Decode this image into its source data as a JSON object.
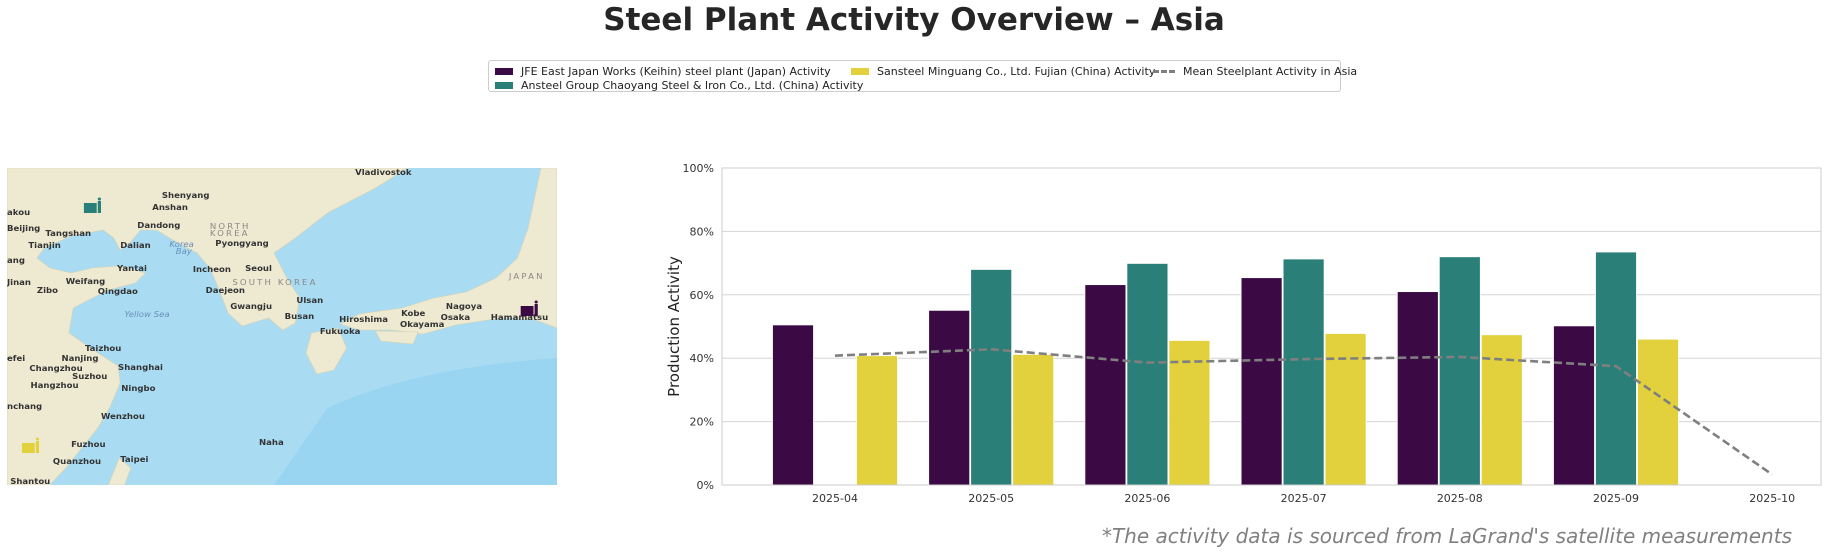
{
  "title": "Steel Plant Activity Overview – Asia",
  "footer": "*The activity data is sourced from LaGrand's satellite measurements",
  "colors": {
    "jfe": "#3b0a45",
    "ansteel": "#2a8079",
    "sansteel": "#e2d13c",
    "mean": "#7f7f7f",
    "sea": "#a9dcf3",
    "land": "#eeead2"
  },
  "map": {
    "labels": {
      "vladivostok": "Vladivostok",
      "shenyang": "Shenyang",
      "anshan": "Anshan",
      "yingkou": "akou",
      "dandong": "Dandong",
      "north_korea_1": "NORTH",
      "north_korea_2": "KOREA",
      "beijing": "Beijing",
      "tangshan": "Tangshan",
      "tianjin": "Tianjin",
      "dalian": "Dalian",
      "korea_bay_1": "Korea",
      "korea_bay_2": "Bay",
      "pyongyang": "Pyongyang",
      "cangzhou": "ang",
      "yantai": "Yantai",
      "incheon": "Incheon",
      "seoul": "Seoul",
      "south_korea": "SOUTH KOREA",
      "japan": "JAPAN",
      "jinan": "Jinan",
      "weifang": "Weifang",
      "zibo": "Zibo",
      "qingdao": "Qingdao",
      "daejeon": "Daejeon",
      "ulsan": "Ulsan",
      "gwangju": "Gwangju",
      "yellow_sea": "Yellow Sea",
      "busan": "Busan",
      "hiroshima": "Hiroshima",
      "kobe": "Kobe",
      "osaka": "Osaka",
      "okayama": "Okayama",
      "nagoya": "Nagoya",
      "hamamatsu": "Hamamatsu",
      "fukuoka": "Fukuoka",
      "taizhou": "Taizhou",
      "hefei": "efei",
      "nanjing": "Nanjing",
      "changzhou": "Changzhou",
      "shanghai": "Shanghai",
      "suzhou": "Suzhou",
      "hangzhou": "Hangzhou",
      "ningbo": "Ningbo",
      "nanchang": "nchang",
      "wenzhou": "Wenzhou",
      "naha": "Naha",
      "fuzhou": "Fuzhou",
      "quanzhou": "Quanzhou",
      "taipei": "Taipei",
      "shantou": "Shantou"
    },
    "markers": [
      {
        "plant": "Ansteel Group Chaoyang Steel & Iron Co., Ltd.",
        "icon": "factory-icon",
        "color": "#2a8079"
      },
      {
        "plant": "JFE East Japan Works (Keihin)",
        "icon": "factory-icon",
        "color": "#3b0a45"
      },
      {
        "plant": "Sansteel Minguang Co., Ltd. Fujian",
        "icon": "factory-icon",
        "color": "#e2d13c"
      }
    ]
  },
  "chart_data": {
    "type": "bar",
    "title": "Steel Plant Activity Overview – Asia",
    "xlabel": "",
    "ylabel": "Production Activity",
    "ylim": [
      0,
      100
    ],
    "yticks": [
      "0%",
      "20%",
      "40%",
      "60%",
      "80%",
      "100%"
    ],
    "grid": true,
    "legend": "top-center",
    "categories": [
      "2025-04",
      "2025-05",
      "2025-06",
      "2025-07",
      "2025-08",
      "2025-09",
      "2025-10"
    ],
    "series": [
      {
        "name": "JFE East Japan Works (Keihin) steel plant (Japan) Activity",
        "type": "bar",
        "color": "#3b0a45",
        "values": [
          50.5,
          55.1,
          63.2,
          65.4,
          61.0,
          50.2,
          null
        ]
      },
      {
        "name": "Ansteel Group Chaoyang Steel & Iron Co., Ltd. (China) Activity",
        "type": "bar",
        "color": "#2a8079",
        "values": [
          null,
          68.0,
          69.9,
          71.3,
          72.0,
          73.5,
          null
        ]
      },
      {
        "name": "Sansteel Minguang Co., Ltd. Fujian (China) Activity",
        "type": "bar",
        "color": "#e2d13c",
        "values": [
          40.8,
          41.2,
          45.6,
          47.8,
          47.4,
          46.0,
          null
        ]
      },
      {
        "name": "Mean Steelplant Activity in Asia",
        "type": "line",
        "style": "dashed",
        "color": "#7f7f7f",
        "values": [
          40.8,
          42.8,
          38.6,
          39.7,
          40.4,
          37.5,
          3.3
        ]
      }
    ]
  }
}
